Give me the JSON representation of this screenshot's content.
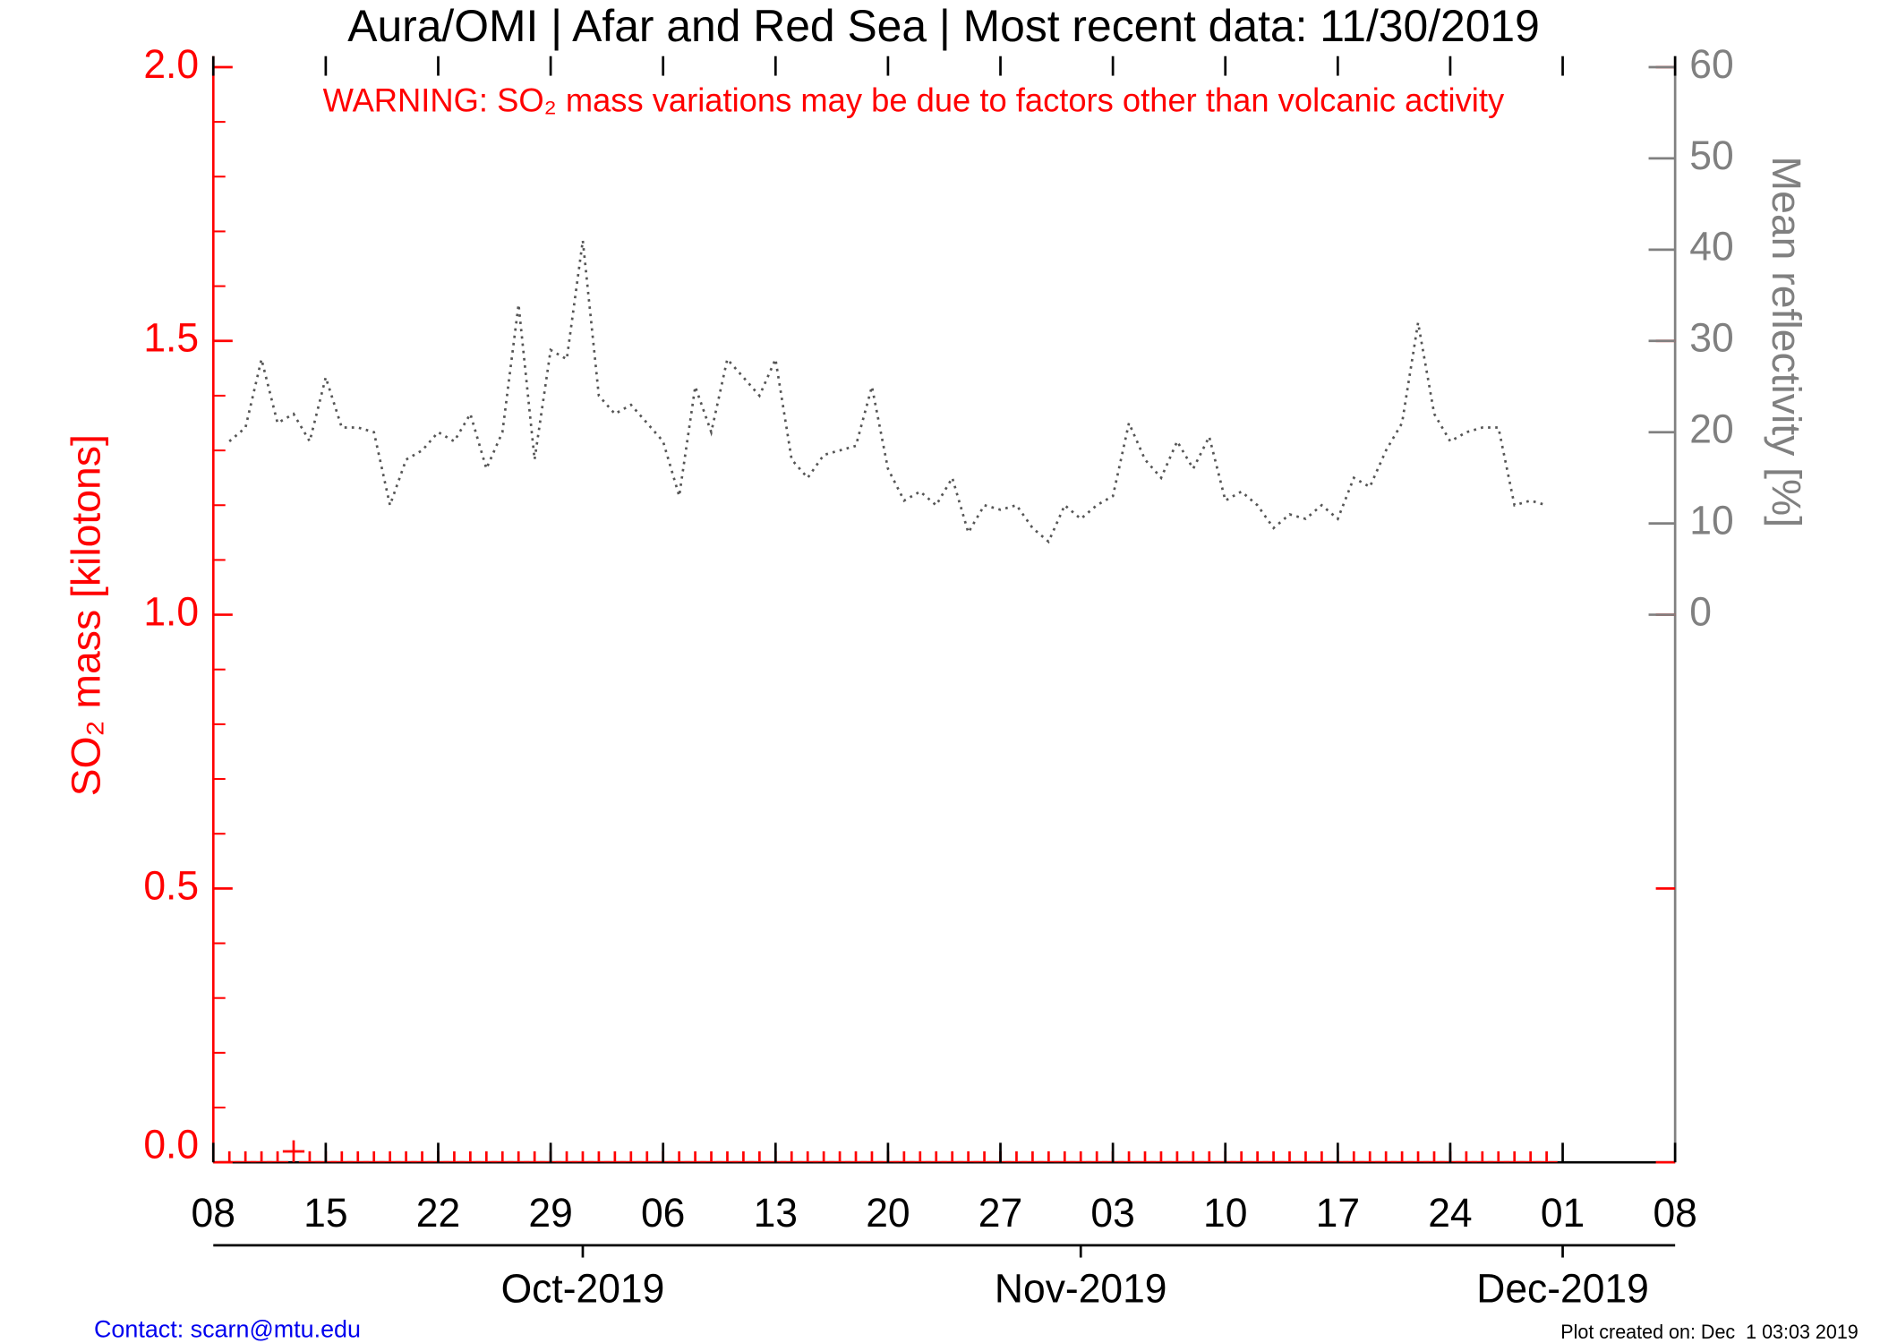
{
  "chart_data": {
    "type": "line",
    "title": "Aura/OMI | Afar and Red Sea | Most recent data: 11/30/2019",
    "annotation": "WARNING: SO₂ mass variations may be due to factors other than volcanic activity",
    "ylabel": "SO₂ mass [kilotons]",
    "y2label": "Mean reflectivity [%]",
    "footer_left": "Contact: scarn@mtu.edu",
    "footer_right": "Plot created on: Dec  1 03:03 2019",
    "x": [
      "2019-09-09",
      "2019-09-10",
      "2019-09-11",
      "2019-09-12",
      "2019-09-13",
      "2019-09-14",
      "2019-09-15",
      "2019-09-16",
      "2019-09-17",
      "2019-09-18",
      "2019-09-19",
      "2019-09-20",
      "2019-09-21",
      "2019-09-22",
      "2019-09-23",
      "2019-09-24",
      "2019-09-25",
      "2019-09-26",
      "2019-09-27",
      "2019-09-28",
      "2019-09-29",
      "2019-09-30",
      "2019-10-01",
      "2019-10-02",
      "2019-10-03",
      "2019-10-04",
      "2019-10-05",
      "2019-10-06",
      "2019-10-07",
      "2019-10-08",
      "2019-10-09",
      "2019-10-10",
      "2019-10-11",
      "2019-10-12",
      "2019-10-13",
      "2019-10-14",
      "2019-10-15",
      "2019-10-16",
      "2019-10-17",
      "2019-10-18",
      "2019-10-19",
      "2019-10-20",
      "2019-10-21",
      "2019-10-22",
      "2019-10-23",
      "2019-10-24",
      "2019-10-25",
      "2019-10-26",
      "2019-10-27",
      "2019-10-28",
      "2019-10-29",
      "2019-10-30",
      "2019-10-31",
      "2019-11-01",
      "2019-11-02",
      "2019-11-03",
      "2019-11-04",
      "2019-11-05",
      "2019-11-06",
      "2019-11-07",
      "2019-11-08",
      "2019-11-09",
      "2019-11-10",
      "2019-11-11",
      "2019-11-12",
      "2019-11-13",
      "2019-11-14",
      "2019-11-15",
      "2019-11-16",
      "2019-11-17",
      "2019-11-18",
      "2019-11-19",
      "2019-11-20",
      "2019-11-21",
      "2019-11-22",
      "2019-11-23",
      "2019-11-24",
      "2019-11-25",
      "2019-11-26",
      "2019-11-27",
      "2019-11-28",
      "2019-11-29",
      "2019-11-30"
    ],
    "series": [
      {
        "color": "#ff0000",
        "marker": "plus",
        "values": [
          0,
          0,
          0,
          0,
          0.02,
          0,
          0,
          0,
          0,
          0,
          0,
          0,
          0,
          0,
          0,
          0,
          0,
          0,
          0,
          0,
          0,
          0,
          0,
          0,
          0,
          0,
          0,
          0,
          0,
          0,
          0,
          0,
          0,
          0,
          0,
          0,
          0,
          0,
          0,
          0,
          0,
          0,
          0,
          0,
          0,
          0,
          0,
          0,
          0,
          0,
          0,
          0,
          0,
          0,
          0,
          0,
          0,
          0,
          0,
          0,
          0,
          0,
          0,
          0,
          0,
          0,
          0,
          0,
          0,
          0,
          0,
          0,
          0,
          0,
          0,
          0,
          0,
          0,
          0,
          0,
          0,
          0,
          0
        ]
      },
      {
        "color": "#555555",
        "axis": "y2",
        "dash": "dotted",
        "values": [
          19,
          20.5,
          28,
          21,
          22,
          19,
          26,
          20.5,
          20.5,
          20,
          12,
          17,
          18,
          20,
          19,
          22,
          16,
          20,
          34,
          17,
          29,
          28,
          41,
          24,
          22,
          23,
          21,
          19,
          13,
          25,
          20,
          28,
          26,
          24,
          28,
          17,
          15,
          17.5,
          18,
          18.5,
          25,
          16,
          12.5,
          13.5,
          12,
          15,
          9,
          12,
          11.5,
          12,
          9.5,
          8,
          12,
          10.5,
          12,
          13,
          21,
          17,
          15,
          19,
          16,
          19.5,
          12.5,
          13.5,
          12,
          9.5,
          11,
          10.5,
          12,
          10.5,
          15,
          14,
          18,
          21,
          32,
          22,
          19,
          20,
          20.5,
          20.5,
          12,
          12.5,
          12
        ]
      }
    ],
    "xlim": [
      "2019-09-08",
      "2019-12-08"
    ],
    "xticks": [
      {
        "value": "2019-09-08",
        "label": "08"
      },
      {
        "value": "2019-09-15",
        "label": "15"
      },
      {
        "value": "2019-09-22",
        "label": "22"
      },
      {
        "value": "2019-09-29",
        "label": "29"
      },
      {
        "value": "2019-10-06",
        "label": "06"
      },
      {
        "value": "2019-10-13",
        "label": "13"
      },
      {
        "value": "2019-10-20",
        "label": "20"
      },
      {
        "value": "2019-10-27",
        "label": "27"
      },
      {
        "value": "2019-11-03",
        "label": "03"
      },
      {
        "value": "2019-11-10",
        "label": "10"
      },
      {
        "value": "2019-11-17",
        "label": "17"
      },
      {
        "value": "2019-11-24",
        "label": "24"
      },
      {
        "value": "2019-12-01",
        "label": "01"
      },
      {
        "value": "2019-12-08",
        "label": "08"
      }
    ],
    "x2ticks": [
      {
        "value": "2019-10-01",
        "label": "Oct-2019"
      },
      {
        "value": "2019-11-01",
        "label": "Nov-2019"
      },
      {
        "value": "2019-12-01",
        "label": "Dec-2019"
      }
    ],
    "ylim": [
      0,
      2.02
    ],
    "yticks": [
      {
        "value": 0,
        "label": "0.0"
      },
      {
        "value": 0.5,
        "label": "0.5"
      },
      {
        "value": 1,
        "label": "1.0"
      },
      1.5,
      {
        "value": 2,
        "label": "2.0"
      }
    ],
    "y2lim": [
      -60,
      61.2
    ],
    "y2ticks": [
      0,
      10,
      20,
      30,
      40,
      50,
      60
    ]
  }
}
